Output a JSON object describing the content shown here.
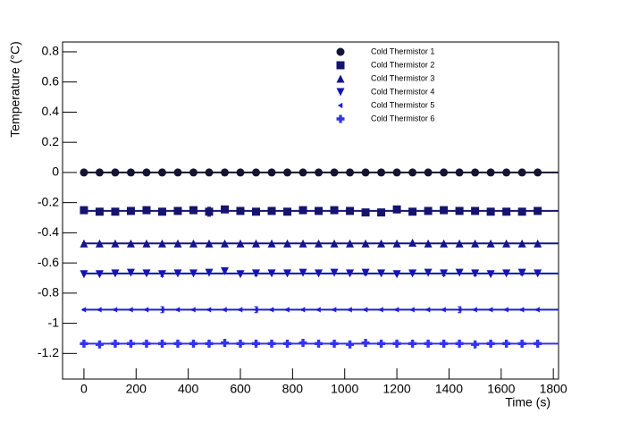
{
  "chart_data": {
    "type": "scatter",
    "x_label": "Time (s)",
    "y_label": "Temperature (°C)",
    "xlim": [
      -82,
      1820
    ],
    "ylim": [
      -1.37,
      0.865
    ],
    "xticks": [
      0,
      200,
      400,
      600,
      800,
      1000,
      1200,
      1400,
      1600,
      1800
    ],
    "yticks": [
      -1.2,
      -1,
      -0.8,
      -0.6,
      -0.4,
      -0.2,
      0,
      0.2,
      0.4,
      0.6,
      0.8
    ],
    "x": [
      0,
      60,
      120,
      180,
      240,
      300,
      360,
      420,
      480,
      540,
      600,
      660,
      720,
      780,
      840,
      900,
      960,
      1020,
      1080,
      1140,
      1200,
      1260,
      1320,
      1380,
      1440,
      1500,
      1560,
      1620,
      1680,
      1740
    ],
    "series": [
      {
        "name": "Cold Thermistor 1",
        "color": "#141432",
        "marker": "circle",
        "fit": 0,
        "values": [
          0,
          0,
          0,
          0,
          0,
          0,
          0,
          0,
          0,
          0,
          0,
          0,
          0,
          0,
          0,
          0,
          0,
          0,
          0,
          0,
          0,
          0,
          0,
          0,
          0,
          0,
          0,
          0,
          0,
          0
        ],
        "errors": [
          0.004,
          0.004,
          0.004,
          0.004,
          0.004,
          0.004,
          0.004,
          0.004,
          0.004,
          0.004,
          0.004,
          0.004,
          0.004,
          0.004,
          0.004,
          0.004,
          0.004,
          0.004,
          0.004,
          0.004,
          0.004,
          0.004,
          0.004,
          0.004,
          0.004,
          0.004,
          0.004,
          0.004,
          0.004,
          0.004
        ]
      },
      {
        "name": "Cold Thermistor 2",
        "color": "#14146e",
        "marker": "square",
        "fit": -0.255,
        "values": [
          -0.25,
          -0.26,
          -0.26,
          -0.255,
          -0.25,
          -0.26,
          -0.255,
          -0.25,
          -0.26,
          -0.245,
          -0.255,
          -0.26,
          -0.255,
          -0.26,
          -0.25,
          -0.255,
          -0.25,
          -0.255,
          -0.265,
          -0.265,
          -0.245,
          -0.26,
          -0.255,
          -0.25,
          -0.255,
          -0.255,
          -0.26,
          -0.26,
          -0.26,
          -0.255
        ],
        "errors": [
          0.005,
          0.005,
          0.005,
          0.005,
          0.005,
          0.015,
          0.015,
          0.005,
          0.03,
          0.005,
          0.005,
          0.005,
          0.005,
          0.015,
          0.015,
          0.005,
          0.005,
          0.005,
          0.005,
          0.005,
          0.005,
          0.005,
          0.015,
          0.005,
          0.005,
          0.015,
          0.005,
          0.015,
          0.005,
          0.005
        ]
      },
      {
        "name": "Cold Thermistor 3",
        "color": "#14148c",
        "marker": "triangle-up",
        "fit": -0.47,
        "values": [
          -0.47,
          -0.47,
          -0.47,
          -0.47,
          -0.47,
          -0.47,
          -0.47,
          -0.47,
          -0.47,
          -0.47,
          -0.47,
          -0.47,
          -0.47,
          -0.47,
          -0.47,
          -0.47,
          -0.47,
          -0.47,
          -0.47,
          -0.47,
          -0.47,
          -0.465,
          -0.47,
          -0.47,
          -0.47,
          -0.47,
          -0.47,
          -0.47,
          -0.47,
          -0.47
        ],
        "errors": [
          0.004,
          0.004,
          0.004,
          0.004,
          0.004,
          0.004,
          0.004,
          0.004,
          0.004,
          0.004,
          0.004,
          0.004,
          0.004,
          0.004,
          0.004,
          0.004,
          0.004,
          0.004,
          0.004,
          0.004,
          0.004,
          0.004,
          0.004,
          0.004,
          0.004,
          0.004,
          0.004,
          0.004,
          0.004,
          0.004
        ]
      },
      {
        "name": "Cold Thermistor 4",
        "color": "#1414b4",
        "marker": "triangle-down",
        "fit": -0.67,
        "values": [
          -0.675,
          -0.675,
          -0.67,
          -0.665,
          -0.67,
          -0.675,
          -0.67,
          -0.67,
          -0.665,
          -0.655,
          -0.675,
          -0.67,
          -0.67,
          -0.67,
          -0.665,
          -0.67,
          -0.665,
          -0.67,
          -0.665,
          -0.67,
          -0.675,
          -0.67,
          -0.665,
          -0.67,
          -0.665,
          -0.67,
          -0.675,
          -0.67,
          -0.665,
          -0.67
        ],
        "errors": [
          0.005,
          0.005,
          0.005,
          0.005,
          0.005,
          0.015,
          0.005,
          0.005,
          0.005,
          0.005,
          0.005,
          0.015,
          0.005,
          0.005,
          0.005,
          0.005,
          0.005,
          0.005,
          0.015,
          0.005,
          0.005,
          0.005,
          0.005,
          0.015,
          0.005,
          0.015,
          0.005,
          0.005,
          0.015,
          0.005
        ]
      },
      {
        "name": "Cold Thermistor 5",
        "color": "#1e1ed2",
        "marker": "triangle-left",
        "fit": -0.91,
        "values": [
          -0.91,
          -0.91,
          -0.91,
          -0.91,
          -0.91,
          -0.91,
          -0.91,
          -0.91,
          -0.91,
          -0.91,
          -0.91,
          -0.91,
          -0.91,
          -0.91,
          -0.91,
          -0.91,
          -0.91,
          -0.91,
          -0.91,
          -0.91,
          -0.91,
          -0.91,
          -0.91,
          -0.91,
          -0.91,
          -0.91,
          -0.91,
          -0.91,
          -0.91,
          -0.91
        ],
        "errors": [
          0.005,
          0.005,
          0.005,
          0.005,
          0.005,
          0.02,
          0.005,
          0.005,
          0.005,
          0.005,
          0.005,
          0.02,
          0.005,
          0.005,
          0.005,
          0.005,
          0.005,
          0.005,
          0.005,
          0.005,
          0.005,
          0.005,
          0.005,
          0.005,
          0.02,
          0.005,
          0.005,
          0.005,
          0.005,
          0.005
        ]
      },
      {
        "name": "Cold Thermistor 6",
        "color": "#3232f0",
        "marker": "cross",
        "fit": -1.135,
        "values": [
          -1.135,
          -1.14,
          -1.135,
          -1.135,
          -1.135,
          -1.135,
          -1.135,
          -1.135,
          -1.135,
          -1.13,
          -1.135,
          -1.135,
          -1.135,
          -1.135,
          -1.13,
          -1.135,
          -1.135,
          -1.14,
          -1.13,
          -1.135,
          -1.135,
          -1.135,
          -1.135,
          -1.135,
          -1.135,
          -1.14,
          -1.135,
          -1.135,
          -1.135,
          -1.135
        ],
        "errors": [
          0.006,
          0.006,
          0.006,
          0.006,
          0.006,
          0.006,
          0.006,
          0.006,
          0.006,
          0.006,
          0.006,
          0.006,
          0.006,
          0.006,
          0.006,
          0.006,
          0.006,
          0.006,
          0.006,
          0.006,
          0.006,
          0.006,
          0.006,
          0.006,
          0.006,
          0.006,
          0.006,
          0.006,
          0.006,
          0.006
        ]
      }
    ]
  }
}
